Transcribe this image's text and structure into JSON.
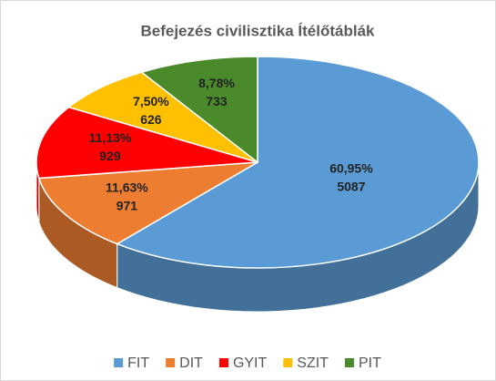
{
  "chart_data": {
    "type": "pie3d",
    "title": "Befejezés civilisztika Ítélőtáblák",
    "categories": [
      "FIT",
      "DIT",
      "GYIT",
      "SZIT",
      "PIT"
    ],
    "values": [
      5087,
      971,
      929,
      626,
      733
    ],
    "percent_labels": [
      "60,95%",
      "11,63%",
      "11,13%",
      "7,50%",
      "8,78%"
    ],
    "colors": [
      "#5b9bd5",
      "#ed7d31",
      "#ff0000",
      "#ffc000",
      "#4a8a2a"
    ],
    "legend": "bottom"
  }
}
